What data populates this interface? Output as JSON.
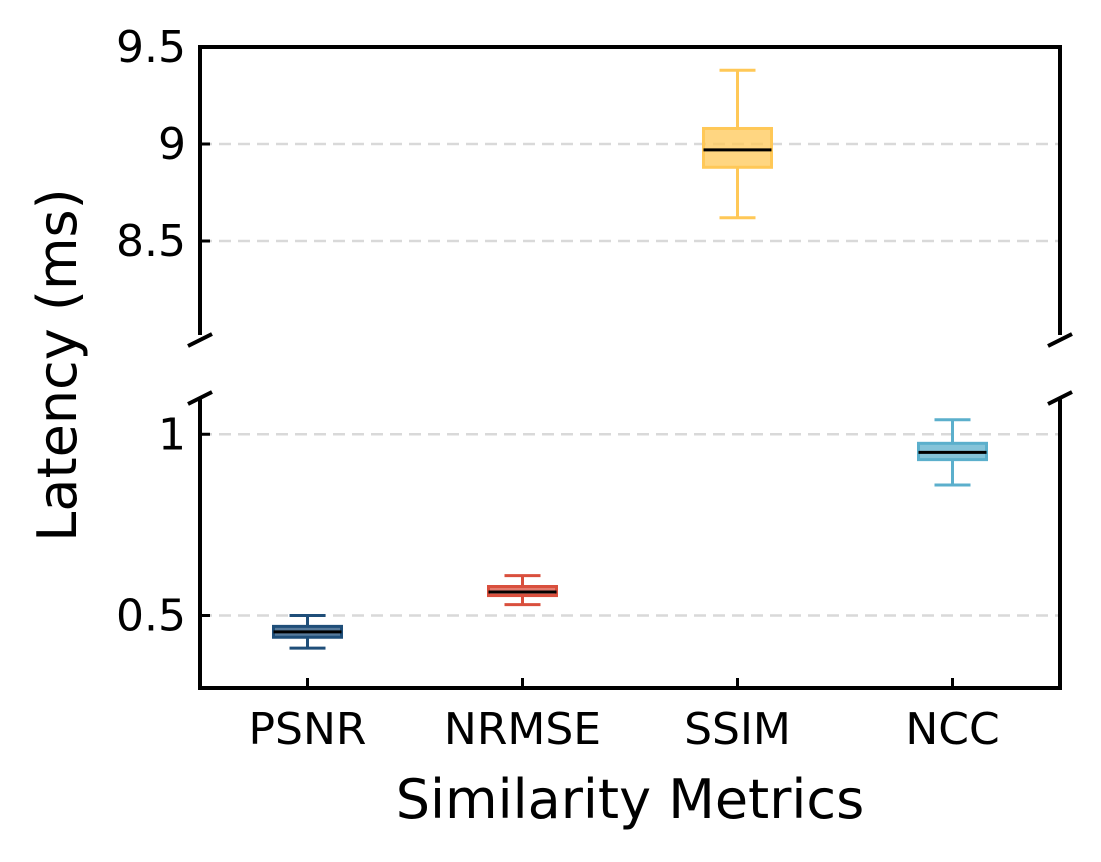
{
  "chart_data": {
    "type": "box",
    "xlabel": "Similarity Metrics",
    "ylabel": "Latency (ms)",
    "categories": [
      "PSNR",
      "NRMSE",
      "SSIM",
      "NCC"
    ],
    "broken_y_axis": true,
    "upper_panel": {
      "ylim": [
        8.0,
        9.5
      ],
      "ticks": [
        8.5,
        9.0,
        9.5
      ],
      "tick_labels": [
        "8.5",
        "9",
        "9.5"
      ]
    },
    "lower_panel": {
      "ylim": [
        0.3,
        1.1
      ],
      "ticks": [
        0.5,
        1.0
      ],
      "tick_labels": [
        "0.5",
        "1"
      ]
    },
    "grid": "y dashed",
    "boxes": [
      {
        "name": "PSNR",
        "panel": "lower",
        "whisker_low": 0.41,
        "q1": 0.44,
        "median": 0.455,
        "q3": 0.47,
        "whisker_high": 0.5,
        "color": "#1f4e79"
      },
      {
        "name": "NRMSE",
        "panel": "lower",
        "whisker_low": 0.53,
        "q1": 0.555,
        "median": 0.565,
        "q3": 0.58,
        "whisker_high": 0.61,
        "color": "#d94f3d"
      },
      {
        "name": "SSIM",
        "panel": "upper",
        "whisker_low": 8.62,
        "q1": 8.88,
        "median": 8.97,
        "q3": 9.08,
        "whisker_high": 9.38,
        "color": "#ffc857"
      },
      {
        "name": "NCC",
        "panel": "lower",
        "whisker_low": 0.86,
        "q1": 0.93,
        "median": 0.95,
        "q3": 0.975,
        "whisker_high": 1.04,
        "color": "#5bafcc"
      }
    ]
  }
}
